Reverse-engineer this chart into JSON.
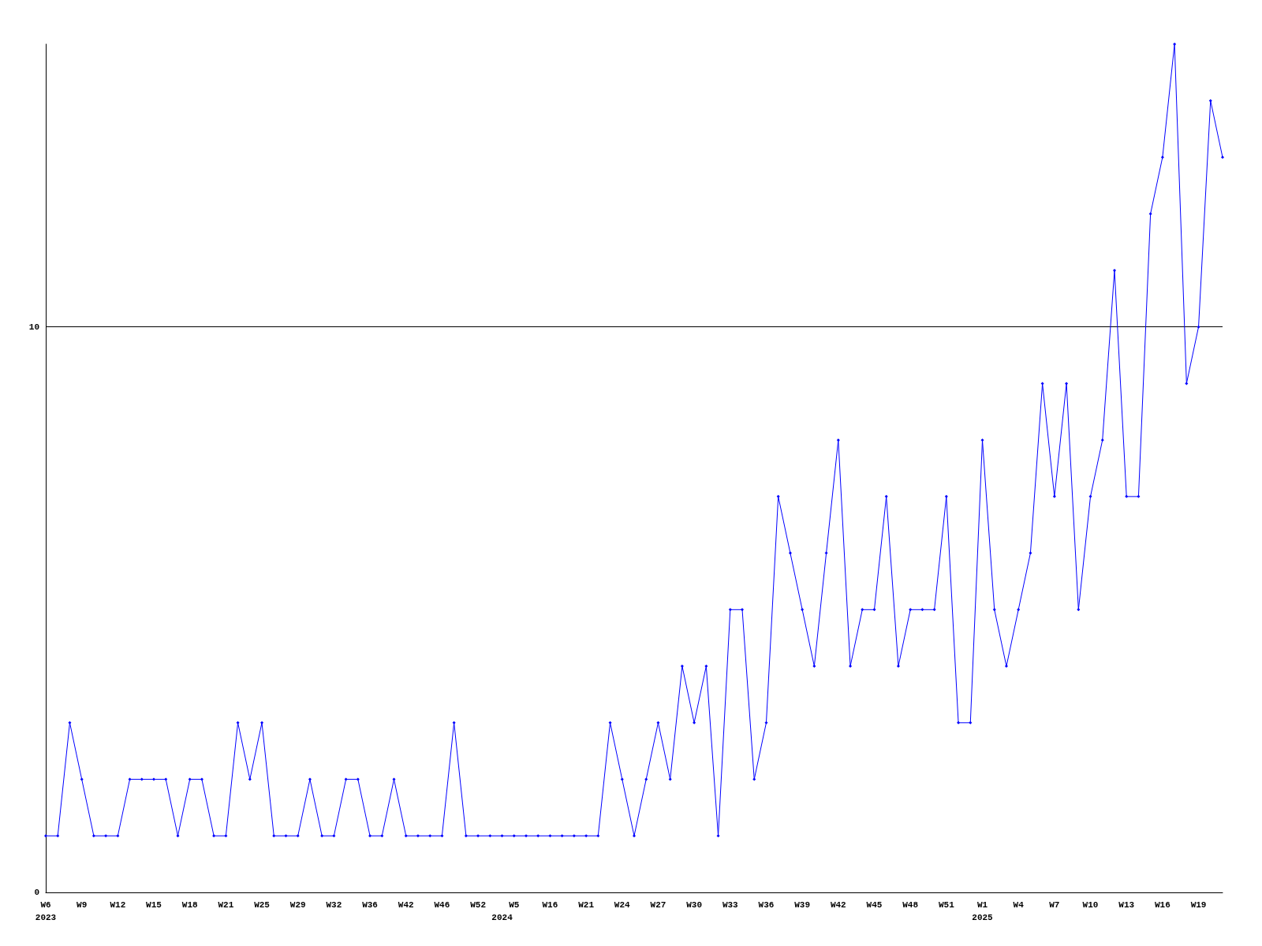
{
  "chart_data": {
    "type": "line",
    "categories": [
      "W6\n2023",
      null,
      null,
      "W9",
      null,
      null,
      "W12",
      null,
      null,
      "W15",
      null,
      null,
      "W18",
      null,
      null,
      "W21",
      null,
      null,
      "W25",
      null,
      null,
      "W29",
      null,
      null,
      "W32",
      null,
      null,
      "W36",
      null,
      null,
      "W42",
      null,
      null,
      "W46",
      null,
      null,
      "W52",
      null,
      "\n2024",
      "W5",
      null,
      null,
      "W16",
      null,
      null,
      "W21",
      null,
      null,
      "W24",
      null,
      null,
      "W27",
      null,
      null,
      "W30",
      null,
      null,
      "W33",
      null,
      null,
      "W36",
      null,
      null,
      "W39",
      null,
      null,
      "W42",
      null,
      null,
      "W45",
      null,
      null,
      "W48",
      null,
      null,
      "W51",
      null,
      null,
      "W1\n2025",
      null,
      null,
      "W4",
      null,
      null,
      "W7",
      null,
      null,
      "W10",
      null,
      null,
      "W13",
      null,
      null,
      "W16",
      null,
      null,
      "W19",
      null,
      null
    ],
    "series": [
      {
        "color": "#0000ff",
        "values": [
          1,
          1,
          3,
          2,
          1,
          1,
          1,
          2,
          2,
          2,
          2,
          1,
          2,
          2,
          1,
          1,
          3,
          2,
          3,
          1,
          1,
          1,
          2,
          1,
          1,
          2,
          2,
          1,
          1,
          2,
          1,
          1,
          1,
          1,
          3,
          1,
          1,
          1,
          1,
          1,
          1,
          1,
          1,
          1,
          1,
          1,
          1,
          3,
          2,
          1,
          2,
          3,
          2,
          4,
          3,
          4,
          1,
          5,
          5,
          2,
          3,
          7,
          6,
          5,
          4,
          6,
          8,
          4,
          5,
          5,
          7,
          4,
          5,
          5,
          5,
          7,
          3,
          3,
          8,
          5,
          4,
          5,
          6,
          9,
          7,
          9,
          5,
          7,
          8,
          11,
          7,
          7,
          12,
          13,
          15,
          9,
          10,
          14,
          13
        ]
      }
    ],
    "ylim": [
      0,
      15
    ],
    "yticks": [
      0,
      10
    ],
    "grid": "y",
    "marker": "diamond",
    "line_style": "solid"
  }
}
